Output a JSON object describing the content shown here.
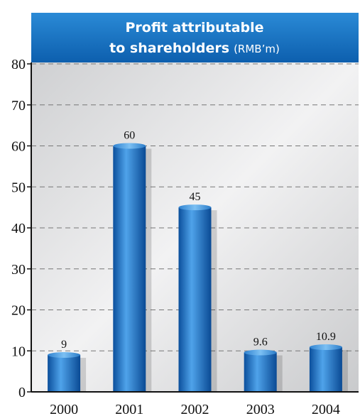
{
  "chart_data": {
    "type": "bar",
    "title": [
      "Profit attributable",
      "to shareholders"
    ],
    "unit": "(RMB’m)",
    "categories": [
      "2000",
      "2001",
      "2002",
      "2003",
      "2004"
    ],
    "values": [
      9,
      60,
      45,
      9.6,
      10.9
    ],
    "color": "#1f6fc4",
    "ylim": [
      0,
      80
    ],
    "yticks": [
      0,
      10,
      20,
      30,
      40,
      50,
      60,
      70,
      80
    ],
    "grid": true
  }
}
